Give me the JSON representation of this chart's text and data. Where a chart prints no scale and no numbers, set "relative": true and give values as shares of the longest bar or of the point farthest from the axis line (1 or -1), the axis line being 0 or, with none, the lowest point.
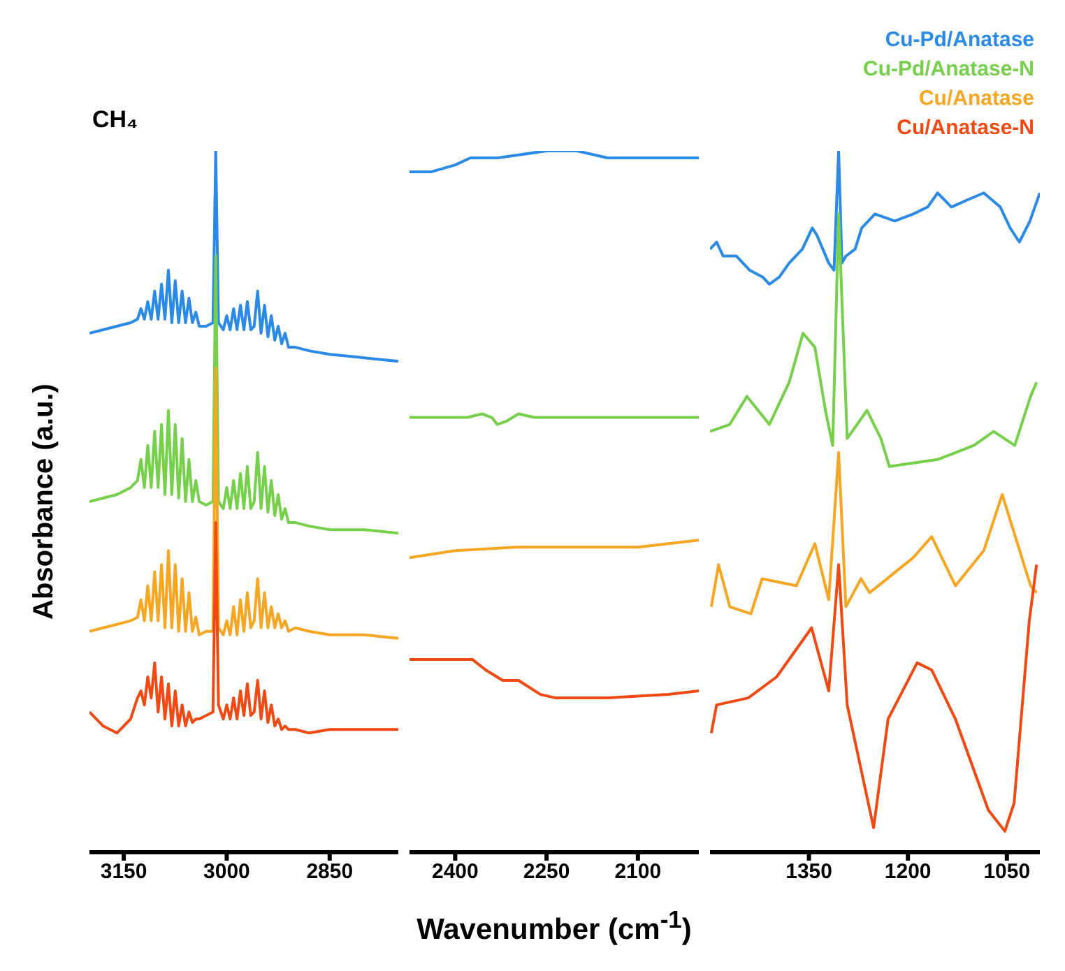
{
  "chart_data": [
    {
      "type": "line",
      "title": "CH₄",
      "ylabel": "Absorbance (a.u.)",
      "relative": true,
      "xlim": [
        3200,
        2750
      ],
      "xticks": [
        3150,
        3000,
        2850
      ],
      "x": [
        3200,
        3180,
        3160,
        3140,
        3130,
        3125,
        3120,
        3115,
        3110,
        3105,
        3100,
        3095,
        3090,
        3085,
        3080,
        3075,
        3070,
        3065,
        3060,
        3055,
        3050,
        3045,
        3040,
        3030,
        3020,
        3016,
        3012,
        3005,
        3000,
        2995,
        2990,
        2985,
        2980,
        2975,
        2970,
        2965,
        2960,
        2955,
        2950,
        2945,
        2940,
        2935,
        2930,
        2925,
        2920,
        2915,
        2910,
        2900,
        2880,
        2850,
        2800,
        2750
      ],
      "series": [
        {
          "color": "#2a8ae6",
          "values": [
            0.74,
            0.745,
            0.75,
            0.755,
            0.76,
            0.775,
            0.76,
            0.785,
            0.76,
            0.8,
            0.76,
            0.81,
            0.76,
            0.83,
            0.755,
            0.815,
            0.755,
            0.8,
            0.755,
            0.79,
            0.755,
            0.77,
            0.75,
            0.75,
            0.755,
            1.0,
            0.755,
            0.745,
            0.765,
            0.745,
            0.775,
            0.745,
            0.78,
            0.745,
            0.785,
            0.745,
            0.75,
            0.8,
            0.74,
            0.78,
            0.735,
            0.765,
            0.73,
            0.75,
            0.725,
            0.74,
            0.72,
            0.72,
            0.715,
            0.71,
            0.705,
            0.7
          ]
        },
        {
          "color": "#76d04b",
          "values": [
            0.5,
            0.505,
            0.51,
            0.52,
            0.53,
            0.56,
            0.52,
            0.58,
            0.52,
            0.6,
            0.52,
            0.61,
            0.51,
            0.63,
            0.51,
            0.61,
            0.505,
            0.59,
            0.5,
            0.56,
            0.5,
            0.53,
            0.5,
            0.495,
            0.5,
            0.85,
            0.5,
            0.49,
            0.52,
            0.49,
            0.53,
            0.49,
            0.54,
            0.49,
            0.55,
            0.49,
            0.5,
            0.57,
            0.49,
            0.55,
            0.485,
            0.53,
            0.48,
            0.51,
            0.475,
            0.49,
            0.47,
            0.47,
            0.465,
            0.46,
            0.46,
            0.455
          ]
        },
        {
          "color": "#f5a623",
          "values": [
            0.315,
            0.32,
            0.325,
            0.33,
            0.335,
            0.36,
            0.33,
            0.38,
            0.33,
            0.4,
            0.33,
            0.41,
            0.32,
            0.43,
            0.32,
            0.41,
            0.315,
            0.39,
            0.315,
            0.37,
            0.315,
            0.335,
            0.31,
            0.315,
            0.315,
            0.69,
            0.32,
            0.31,
            0.33,
            0.31,
            0.35,
            0.31,
            0.36,
            0.315,
            0.37,
            0.32,
            0.33,
            0.39,
            0.32,
            0.37,
            0.32,
            0.35,
            0.32,
            0.34,
            0.32,
            0.33,
            0.315,
            0.32,
            0.315,
            0.31,
            0.31,
            0.305
          ]
        },
        {
          "color": "#f04a14",
          "values": [
            0.2,
            0.18,
            0.17,
            0.19,
            0.22,
            0.23,
            0.21,
            0.25,
            0.22,
            0.27,
            0.2,
            0.25,
            0.19,
            0.24,
            0.18,
            0.23,
            0.18,
            0.21,
            0.18,
            0.2,
            0.185,
            0.19,
            0.19,
            0.195,
            0.2,
            0.47,
            0.21,
            0.19,
            0.21,
            0.19,
            0.22,
            0.19,
            0.23,
            0.195,
            0.24,
            0.195,
            0.2,
            0.245,
            0.19,
            0.23,
            0.185,
            0.21,
            0.18,
            0.19,
            0.175,
            0.18,
            0.175,
            0.175,
            0.17,
            0.175,
            0.175,
            0.175
          ]
        }
      ]
    },
    {
      "type": "line",
      "xlabel": "Wavenumber (cm$^{-1}$)",
      "relative": true,
      "xlim": [
        2475,
        2000
      ],
      "xticks": [
        2400,
        2250,
        2100
      ],
      "series": [
        {
          "color": "#2a8ae6",
          "x": [
            2475,
            2440,
            2400,
            2375,
            2330,
            2250,
            2200,
            2150,
            2100,
            2050,
            2000
          ],
          "values": [
            0.97,
            0.97,
            0.98,
            0.99,
            0.99,
            1.0,
            1.0,
            0.99,
            0.99,
            0.99,
            0.99
          ]
        },
        {
          "color": "#76d04b",
          "x": [
            2475,
            2380,
            2356,
            2340,
            2331,
            2315,
            2296,
            2270,
            2150,
            2000
          ],
          "values": [
            0.62,
            0.62,
            0.625,
            0.62,
            0.61,
            0.615,
            0.625,
            0.62,
            0.62,
            0.62
          ]
        },
        {
          "color": "#f5a623",
          "x": [
            2475,
            2400,
            2300,
            2200,
            2100,
            2000
          ],
          "values": [
            0.42,
            0.43,
            0.435,
            0.435,
            0.435,
            0.445
          ]
        },
        {
          "color": "#f04a14",
          "x": [
            2475,
            2372,
            2350,
            2322,
            2296,
            2260,
            2235,
            2150,
            2050,
            2000
          ],
          "values": [
            0.275,
            0.275,
            0.26,
            0.245,
            0.245,
            0.225,
            0.22,
            0.22,
            0.225,
            0.23
          ]
        }
      ]
    },
    {
      "type": "line",
      "relative": true,
      "xlim": [
        1500,
        1000
      ],
      "xticks": [
        1350,
        1200,
        1050
      ],
      "legend": "top right",
      "series": [
        {
          "name": "Cu-Pd/Anatase",
          "color": "#2a8ae6",
          "x": [
            1500,
            1490,
            1480,
            1460,
            1440,
            1420,
            1410,
            1395,
            1380,
            1360,
            1345,
            1338,
            1320,
            1312,
            1305,
            1300,
            1294,
            1280,
            1270,
            1250,
            1220,
            1192,
            1170,
            1155,
            1134,
            1110,
            1085,
            1060,
            1045,
            1031,
            1015,
            1000
          ],
          "values": [
            0.86,
            0.87,
            0.85,
            0.85,
            0.83,
            0.82,
            0.81,
            0.82,
            0.84,
            0.86,
            0.89,
            0.88,
            0.84,
            0.83,
            1.0,
            0.84,
            0.85,
            0.86,
            0.89,
            0.91,
            0.9,
            0.91,
            0.92,
            0.94,
            0.92,
            0.93,
            0.94,
            0.92,
            0.89,
            0.87,
            0.9,
            0.94
          ]
        },
        {
          "name": "Cu-Pd/Anatase-N",
          "color": "#76d04b",
          "x": [
            1500,
            1470,
            1444,
            1410,
            1380,
            1359,
            1341,
            1325,
            1314,
            1305,
            1292,
            1262,
            1241,
            1228,
            1155,
            1100,
            1070,
            1038,
            1014,
            1005
          ],
          "values": [
            0.6,
            0.61,
            0.65,
            0.61,
            0.67,
            0.74,
            0.72,
            0.63,
            0.58,
            0.91,
            0.59,
            0.63,
            0.59,
            0.55,
            0.56,
            0.58,
            0.6,
            0.58,
            0.65,
            0.67
          ]
        },
        {
          "name": "Cu/Anatase",
          "color": "#f5a623",
          "x": [
            1498,
            1487,
            1470,
            1438,
            1421,
            1369,
            1341,
            1320,
            1305,
            1294,
            1271,
            1258,
            1192,
            1164,
            1128,
            1085,
            1057,
            1014,
            1005
          ],
          "values": [
            0.35,
            0.41,
            0.35,
            0.34,
            0.39,
            0.38,
            0.44,
            0.36,
            0.57,
            0.35,
            0.39,
            0.37,
            0.42,
            0.45,
            0.38,
            0.43,
            0.51,
            0.38,
            0.37
          ]
        },
        {
          "name": "Cu/Anatase-N",
          "color": "#f04a14",
          "x": [
            1498,
            1490,
            1442,
            1399,
            1346,
            1320,
            1305,
            1292,
            1252,
            1230,
            1186,
            1164,
            1128,
            1078,
            1053,
            1039,
            1016,
            1005
          ],
          "values": [
            0.17,
            0.21,
            0.22,
            0.25,
            0.32,
            0.23,
            0.41,
            0.21,
            0.035,
            0.19,
            0.27,
            0.26,
            0.19,
            0.06,
            0.03,
            0.07,
            0.33,
            0.41
          ]
        }
      ]
    }
  ]
}
